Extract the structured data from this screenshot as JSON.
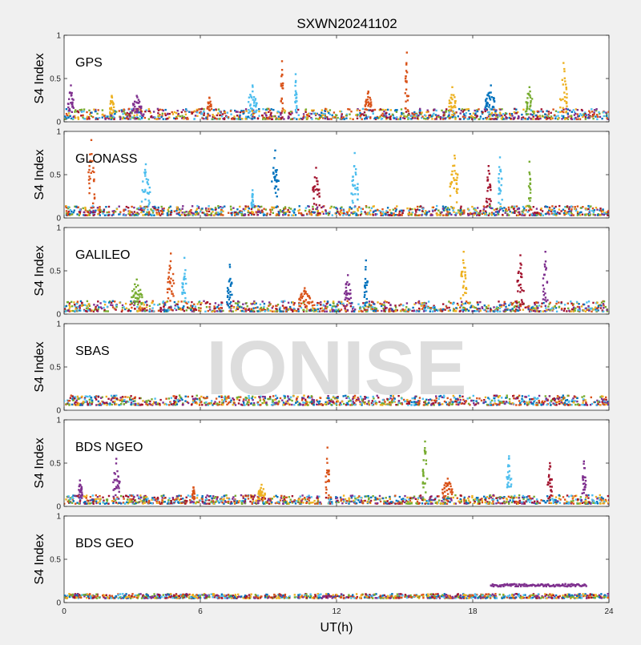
{
  "title": "SXWN20241102",
  "watermark": "IONISE",
  "colors": {
    "background": "#f0f0f0",
    "axes_bg": "#ffffff",
    "watermark": "#d8d8d8",
    "series": [
      "#0072BD",
      "#D95319",
      "#EDB120",
      "#7E2F8E",
      "#77AC30",
      "#4DBEEE",
      "#A2142F"
    ]
  },
  "chart_data": {
    "type": "scatter",
    "xlabel": "UT(h)",
    "xlim": [
      0,
      24
    ],
    "xticks": [
      0,
      6,
      12,
      18,
      24
    ],
    "ylim": [
      0,
      1
    ],
    "yticks": [
      0,
      0.5,
      1
    ],
    "grid": false,
    "legend": "none",
    "panels": [
      {
        "label": "GPS",
        "ylabel": "S4 Index",
        "baseline": {
          "min": 0.03,
          "max": 0.15
        },
        "bursts": [
          {
            "x": 0.3,
            "peak": 0.42,
            "width": 0.25,
            "c": 3
          },
          {
            "x": 2.1,
            "peak": 0.3,
            "width": 0.2,
            "c": 2
          },
          {
            "x": 3.2,
            "peak": 0.3,
            "width": 0.4,
            "c": 3
          },
          {
            "x": 6.4,
            "peak": 0.28,
            "width": 0.2,
            "c": 1
          },
          {
            "x": 8.3,
            "peak": 0.42,
            "width": 0.4,
            "c": 5
          },
          {
            "x": 9.6,
            "peak": 0.7,
            "width": 0.1,
            "c": 1
          },
          {
            "x": 10.2,
            "peak": 0.55,
            "width": 0.1,
            "c": 5
          },
          {
            "x": 13.4,
            "peak": 0.35,
            "width": 0.3,
            "c": 1
          },
          {
            "x": 15.1,
            "peak": 0.8,
            "width": 0.15,
            "c": 1
          },
          {
            "x": 17.1,
            "peak": 0.4,
            "width": 0.3,
            "c": 2
          },
          {
            "x": 18.8,
            "peak": 0.42,
            "width": 0.5,
            "c": 0
          },
          {
            "x": 20.5,
            "peak": 0.4,
            "width": 0.3,
            "c": 4
          },
          {
            "x": 22.0,
            "peak": 0.68,
            "width": 0.3,
            "c": 2
          }
        ]
      },
      {
        "label": "GLONASS",
        "ylabel": "S4 Index",
        "baseline": {
          "min": 0.03,
          "max": 0.14
        },
        "bursts": [
          {
            "x": 1.2,
            "peak": 0.9,
            "width": 0.3,
            "c": 1
          },
          {
            "x": 3.6,
            "peak": 0.62,
            "width": 0.4,
            "c": 5
          },
          {
            "x": 8.3,
            "peak": 0.32,
            "width": 0.1,
            "c": 5
          },
          {
            "x": 9.3,
            "peak": 0.78,
            "width": 0.3,
            "c": 0
          },
          {
            "x": 11.1,
            "peak": 0.58,
            "width": 0.3,
            "c": 6
          },
          {
            "x": 12.8,
            "peak": 0.75,
            "width": 0.3,
            "c": 5
          },
          {
            "x": 17.2,
            "peak": 0.72,
            "width": 0.4,
            "c": 2
          },
          {
            "x": 18.7,
            "peak": 0.6,
            "width": 0.2,
            "c": 6
          },
          {
            "x": 19.2,
            "peak": 0.7,
            "width": 0.2,
            "c": 5
          },
          {
            "x": 20.5,
            "peak": 0.65,
            "width": 0.1,
            "c": 4
          }
        ]
      },
      {
        "label": "GALILEO",
        "ylabel": "S4 Index",
        "baseline": {
          "min": 0.03,
          "max": 0.15
        },
        "bursts": [
          {
            "x": 3.2,
            "peak": 0.4,
            "width": 0.5,
            "c": 4
          },
          {
            "x": 4.7,
            "peak": 0.7,
            "width": 0.3,
            "c": 1
          },
          {
            "x": 5.3,
            "peak": 0.65,
            "width": 0.2,
            "c": 5
          },
          {
            "x": 7.3,
            "peak": 0.57,
            "width": 0.2,
            "c": 0
          },
          {
            "x": 10.6,
            "peak": 0.3,
            "width": 0.5,
            "c": 1
          },
          {
            "x": 12.5,
            "peak": 0.45,
            "width": 0.3,
            "c": 3
          },
          {
            "x": 13.3,
            "peak": 0.62,
            "width": 0.15,
            "c": 0
          },
          {
            "x": 17.6,
            "peak": 0.72,
            "width": 0.3,
            "c": 2
          },
          {
            "x": 20.1,
            "peak": 0.68,
            "width": 0.3,
            "c": 6
          },
          {
            "x": 21.2,
            "peak": 0.72,
            "width": 0.2,
            "c": 3
          }
        ]
      },
      {
        "label": "SBAS",
        "ylabel": "S4 Index",
        "baseline": {
          "min": 0.06,
          "max": 0.17
        },
        "bursts": []
      },
      {
        "label": "BDS NGEO",
        "ylabel": "S4 Index",
        "baseline": {
          "min": 0.03,
          "max": 0.13
        },
        "bursts": [
          {
            "x": 0.7,
            "peak": 0.3,
            "width": 0.2,
            "c": 3
          },
          {
            "x": 2.3,
            "peak": 0.55,
            "width": 0.3,
            "c": 3
          },
          {
            "x": 5.7,
            "peak": 0.22,
            "width": 0.1,
            "c": 1
          },
          {
            "x": 8.7,
            "peak": 0.25,
            "width": 0.3,
            "c": 2
          },
          {
            "x": 11.6,
            "peak": 0.68,
            "width": 0.15,
            "c": 1
          },
          {
            "x": 15.9,
            "peak": 0.75,
            "width": 0.2,
            "c": 4
          },
          {
            "x": 16.9,
            "peak": 0.32,
            "width": 0.5,
            "c": 1
          },
          {
            "x": 19.6,
            "peak": 0.58,
            "width": 0.2,
            "c": 5
          },
          {
            "x": 21.4,
            "peak": 0.5,
            "width": 0.2,
            "c": 6
          },
          {
            "x": 22.9,
            "peak": 0.52,
            "width": 0.2,
            "c": 3
          }
        ]
      },
      {
        "label": "BDS GEO",
        "ylabel": "S4 Index",
        "baseline": {
          "min": 0.05,
          "max": 0.1
        },
        "bursts": [],
        "segments": [
          {
            "x0": 18.8,
            "x1": 23.0,
            "y": 0.2,
            "c": 3
          }
        ]
      }
    ]
  }
}
